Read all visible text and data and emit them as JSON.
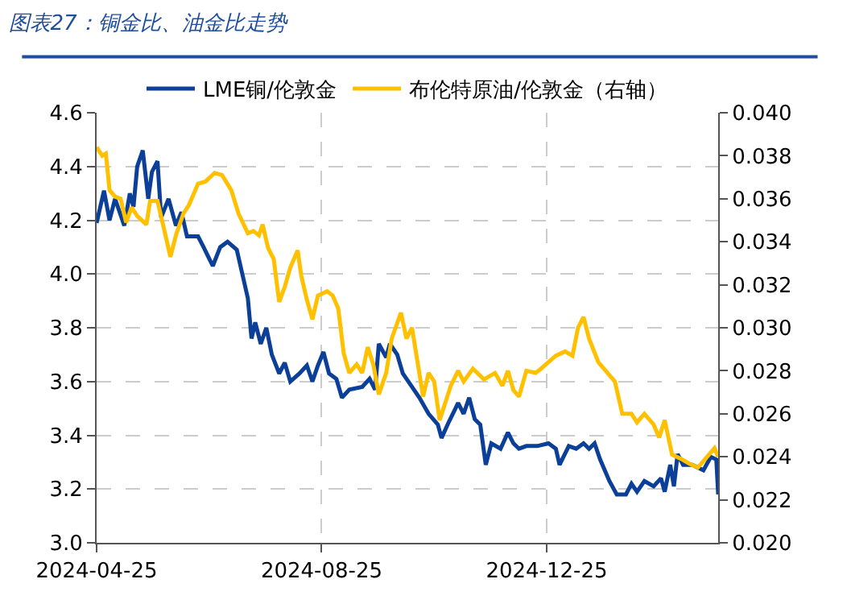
{
  "chart_data": {
    "type": "line",
    "title": "图表27：铜金比、油金比走势",
    "xlim": [
      "2024-04-25",
      "2025-03-28"
    ],
    "xticks": [
      "2024-04-25",
      "2024-08-25",
      "2024-12-25"
    ],
    "ylim": [
      3.0,
      4.6
    ],
    "yticks": [
      {
        "value": 3.0,
        "label": "3.0"
      },
      3.2,
      3.4,
      3.6,
      3.8,
      {
        "value": 4.0,
        "label": "4.0"
      },
      4.2,
      4.4,
      4.6
    ],
    "y2lim": [
      0.02,
      0.04
    ],
    "y2ticks": [
      {
        "value": 0.02,
        "label": "0.020"
      },
      {
        "value": 0.022,
        "label": "0.022"
      },
      {
        "value": 0.024,
        "label": "0.024"
      },
      {
        "value": 0.026,
        "label": "0.026"
      },
      {
        "value": 0.028,
        "label": "0.028"
      },
      {
        "value": 0.03,
        "label": "0.030"
      },
      {
        "value": 0.032,
        "label": "0.032"
      },
      {
        "value": 0.034,
        "label": "0.034"
      },
      {
        "value": 0.036,
        "label": "0.036"
      },
      {
        "value": 0.038,
        "label": "0.038"
      },
      {
        "value": 0.04,
        "label": "0.040"
      }
    ],
    "grid": true,
    "legend": "top",
    "line_style": "solid",
    "marker": "none",
    "series": [
      {
        "name": "LME铜/伦敦金",
        "color": "#0b3f98",
        "x": [
          "2024-04-25",
          "2024-04-29",
          "2024-05-02",
          "2024-05-05",
          "2024-05-10",
          "2024-05-13",
          "2024-05-15",
          "2024-05-17",
          "2024-05-20",
          "2024-05-23",
          "2024-05-25",
          "2024-05-28",
          "2024-05-30",
          "2024-06-03",
          "2024-06-07",
          "2024-06-10",
          "2024-06-13",
          "2024-06-19",
          "2024-06-22",
          "2024-06-27",
          "2024-07-01",
          "2024-07-05",
          "2024-07-10",
          "2024-07-13",
          "2024-07-16",
          "2024-07-18",
          "2024-07-20",
          "2024-07-23",
          "2024-07-26",
          "2024-07-29",
          "2024-08-02",
          "2024-08-05",
          "2024-08-08",
          "2024-08-13",
          "2024-08-17",
          "2024-08-20",
          "2024-08-23",
          "2024-08-26",
          "2024-08-29",
          "2024-09-02",
          "2024-09-05",
          "2024-09-09",
          "2024-09-16",
          "2024-09-20",
          "2024-09-23",
          "2024-09-25",
          "2024-09-29",
          "2024-10-01",
          "2024-10-05",
          "2024-10-08",
          "2024-10-13",
          "2024-10-17",
          "2024-10-22",
          "2024-10-27",
          "2024-10-29",
          "2024-11-02",
          "2024-11-07",
          "2024-11-10",
          "2024-11-13",
          "2024-11-16",
          "2024-11-19",
          "2024-11-22",
          "2024-11-25",
          "2024-11-30",
          "2024-12-04",
          "2024-12-07",
          "2024-12-10",
          "2024-12-14",
          "2024-12-20",
          "2024-12-26",
          "2024-12-30",
          "2025-01-01",
          "2025-01-06",
          "2025-01-10",
          "2025-01-14",
          "2025-01-17",
          "2025-01-20",
          "2025-01-23",
          "2025-01-28",
          "2025-02-01",
          "2025-02-06",
          "2025-02-09",
          "2025-02-12",
          "2025-02-16",
          "2025-02-21",
          "2025-02-25",
          "2025-02-27",
          "2025-03-02",
          "2025-03-04",
          "2025-03-06",
          "2025-03-09",
          "2025-03-14",
          "2025-03-20",
          "2025-03-24",
          "2025-03-27",
          "2025-03-28"
        ],
        "values": [
          4.19,
          4.31,
          4.2,
          4.28,
          4.18,
          4.3,
          4.25,
          4.4,
          4.46,
          4.28,
          4.38,
          4.42,
          4.21,
          4.28,
          4.18,
          4.23,
          4.14,
          4.14,
          4.1,
          4.03,
          4.1,
          4.12,
          4.09,
          4.0,
          3.91,
          3.76,
          3.82,
          3.74,
          3.8,
          3.7,
          3.63,
          3.67,
          3.6,
          3.63,
          3.66,
          3.6,
          3.66,
          3.71,
          3.63,
          3.61,
          3.54,
          3.57,
          3.58,
          3.61,
          3.57,
          3.74,
          3.69,
          3.74,
          3.7,
          3.63,
          3.58,
          3.54,
          3.48,
          3.44,
          3.39,
          3.45,
          3.52,
          3.48,
          3.54,
          3.46,
          3.44,
          3.29,
          3.37,
          3.35,
          3.41,
          3.37,
          3.35,
          3.36,
          3.36,
          3.37,
          3.35,
          3.29,
          3.36,
          3.35,
          3.37,
          3.35,
          3.37,
          3.31,
          3.23,
          3.18,
          3.18,
          3.22,
          3.19,
          3.23,
          3.21,
          3.24,
          3.19,
          3.29,
          3.21,
          3.33,
          3.29,
          3.29,
          3.27,
          3.32,
          3.31,
          3.18
        ]
      },
      {
        "name": "布伦特原油/伦敦金（右轴）",
        "color": "#ffc000",
        "axis": "y2",
        "x": [
          "2024-04-25",
          "2024-04-28",
          "2024-04-30",
          "2024-05-02",
          "2024-05-05",
          "2024-05-08",
          "2024-05-11",
          "2024-05-14",
          "2024-05-17",
          "2024-05-22",
          "2024-05-24",
          "2024-05-28",
          "2024-05-31",
          "2024-06-04",
          "2024-06-07",
          "2024-06-11",
          "2024-06-14",
          "2024-06-19",
          "2024-06-23",
          "2024-06-28",
          "2024-07-02",
          "2024-07-07",
          "2024-07-11",
          "2024-07-16",
          "2024-07-19",
          "2024-07-22",
          "2024-07-24",
          "2024-07-27",
          "2024-07-30",
          "2024-08-02",
          "2024-08-05",
          "2024-08-08",
          "2024-08-12",
          "2024-08-14",
          "2024-08-17",
          "2024-08-20",
          "2024-08-23",
          "2024-08-28",
          "2024-08-31",
          "2024-09-03",
          "2024-09-06",
          "2024-09-09",
          "2024-09-13",
          "2024-09-16",
          "2024-09-19",
          "2024-09-22",
          "2024-09-25",
          "2024-09-29",
          "2024-10-02",
          "2024-10-07",
          "2024-10-10",
          "2024-10-13",
          "2024-10-16",
          "2024-10-19",
          "2024-10-22",
          "2024-10-25",
          "2024-10-28",
          "2024-10-31",
          "2024-11-03",
          "2024-11-07",
          "2024-11-10",
          "2024-11-15",
          "2024-11-21",
          "2024-11-27",
          "2024-12-01",
          "2024-12-04",
          "2024-12-07",
          "2024-12-10",
          "2024-12-14",
          "2024-12-19",
          "2024-12-22",
          "2024-12-26",
          "2024-12-30",
          "2025-01-04",
          "2025-01-08",
          "2025-01-11",
          "2025-01-14",
          "2025-01-17",
          "2025-01-22",
          "2025-01-26",
          "2025-01-31",
          "2025-02-04",
          "2025-02-09",
          "2025-02-12",
          "2025-02-16",
          "2025-02-21",
          "2025-02-24",
          "2025-02-27",
          "2025-03-03",
          "2025-03-08",
          "2025-03-12",
          "2025-03-17",
          "2025-03-21",
          "2025-03-26",
          "2025-03-28"
        ],
        "values": [
          0.0384,
          0.038,
          0.0381,
          0.0364,
          0.0361,
          0.036,
          0.0349,
          0.0356,
          0.0352,
          0.0348,
          0.0359,
          0.0359,
          0.0348,
          0.0333,
          0.0343,
          0.0353,
          0.0357,
          0.0367,
          0.0368,
          0.0372,
          0.0371,
          0.0364,
          0.0353,
          0.0344,
          0.0345,
          0.0343,
          0.0348,
          0.0337,
          0.0332,
          0.0312,
          0.0319,
          0.0328,
          0.0336,
          0.0324,
          0.0313,
          0.0304,
          0.0315,
          0.0317,
          0.0315,
          0.0309,
          0.0288,
          0.0279,
          0.0283,
          0.0279,
          0.0291,
          0.0283,
          0.0269,
          0.0279,
          0.0295,
          0.0307,
          0.0295,
          0.03,
          0.0284,
          0.0268,
          0.0279,
          0.0275,
          0.0257,
          0.0265,
          0.0273,
          0.028,
          0.0275,
          0.0281,
          0.0276,
          0.0279,
          0.0273,
          0.028,
          0.0271,
          0.0268,
          0.028,
          0.0279,
          0.0281,
          0.0284,
          0.0287,
          0.0289,
          0.0287,
          0.03,
          0.0305,
          0.0295,
          0.0284,
          0.028,
          0.0275,
          0.026,
          0.026,
          0.0256,
          0.026,
          0.0255,
          0.0249,
          0.0257,
          0.0241,
          0.0239,
          0.0237,
          0.0235,
          0.0239,
          0.0244,
          0.024
        ]
      }
    ]
  }
}
